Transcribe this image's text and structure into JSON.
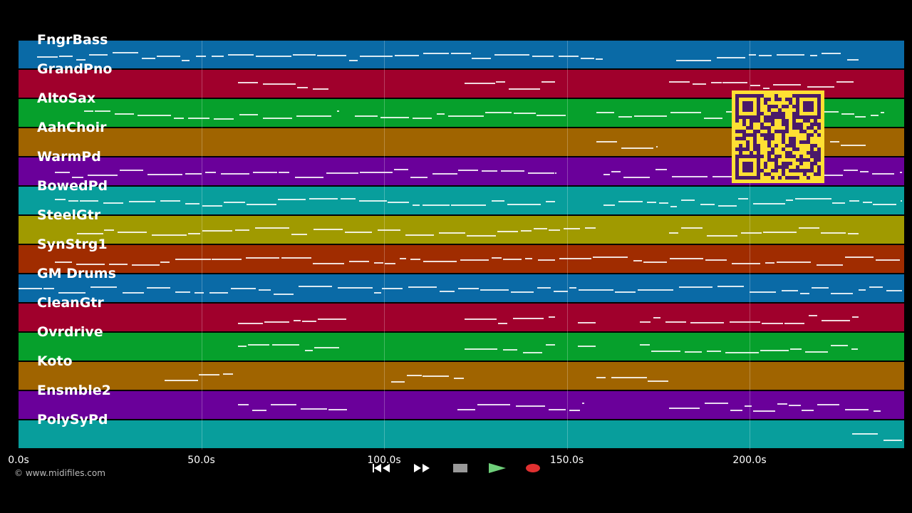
{
  "tracks": [
    {
      "name": "FngrBass",
      "color": "#0a6aa6"
    },
    {
      "name": "GrandPno",
      "color": "#a0002c"
    },
    {
      "name": "AltoSax",
      "color": "#06a02c"
    },
    {
      "name": "AahChoir",
      "color": "#a06400"
    },
    {
      "name": "WarmPd",
      "color": "#6a009a"
    },
    {
      "name": "BowedPd",
      "color": "#089e9c"
    },
    {
      "name": "SteelGtr",
      "color": "#a09a00"
    },
    {
      "name": "SynStrg1",
      "color": "#a02c00"
    },
    {
      "name": "GM Drums",
      "color": "#0a6aa6"
    },
    {
      "name": "CleanGtr",
      "color": "#a0002c"
    },
    {
      "name": "Ovrdrive",
      "color": "#06a02c"
    },
    {
      "name": "Koto",
      "color": "#a06400"
    },
    {
      "name": "Ensmble2",
      "color": "#6a009a"
    },
    {
      "name": "PolySyPd",
      "color": "#089e9c"
    }
  ],
  "time_axis": {
    "unit": "s",
    "ticks": [
      {
        "seconds": 0,
        "label": "0.0s"
      },
      {
        "seconds": 50,
        "label": "50.0s"
      },
      {
        "seconds": 100,
        "label": "100.0s"
      },
      {
        "seconds": 150,
        "label": "150.0s"
      },
      {
        "seconds": 200,
        "label": "200.0s"
      }
    ]
  },
  "footer": {
    "copyright": "© www.midifiles.com"
  },
  "transport": [
    {
      "name": "rewind-button",
      "icon": "rewind-icon",
      "color": "#222222"
    },
    {
      "name": "fast-forward-button",
      "icon": "fast-forward-icon",
      "color": "#222222"
    },
    {
      "name": "stop-button",
      "icon": "stop-icon",
      "color": "#333333"
    },
    {
      "name": "play-button",
      "icon": "play-icon",
      "color": "#1e6e2a"
    },
    {
      "name": "record-button",
      "icon": "record-icon",
      "color": "#4a1414"
    }
  ],
  "qr_code": {
    "icon": "qr-code-icon",
    "color": "#ffe033"
  }
}
